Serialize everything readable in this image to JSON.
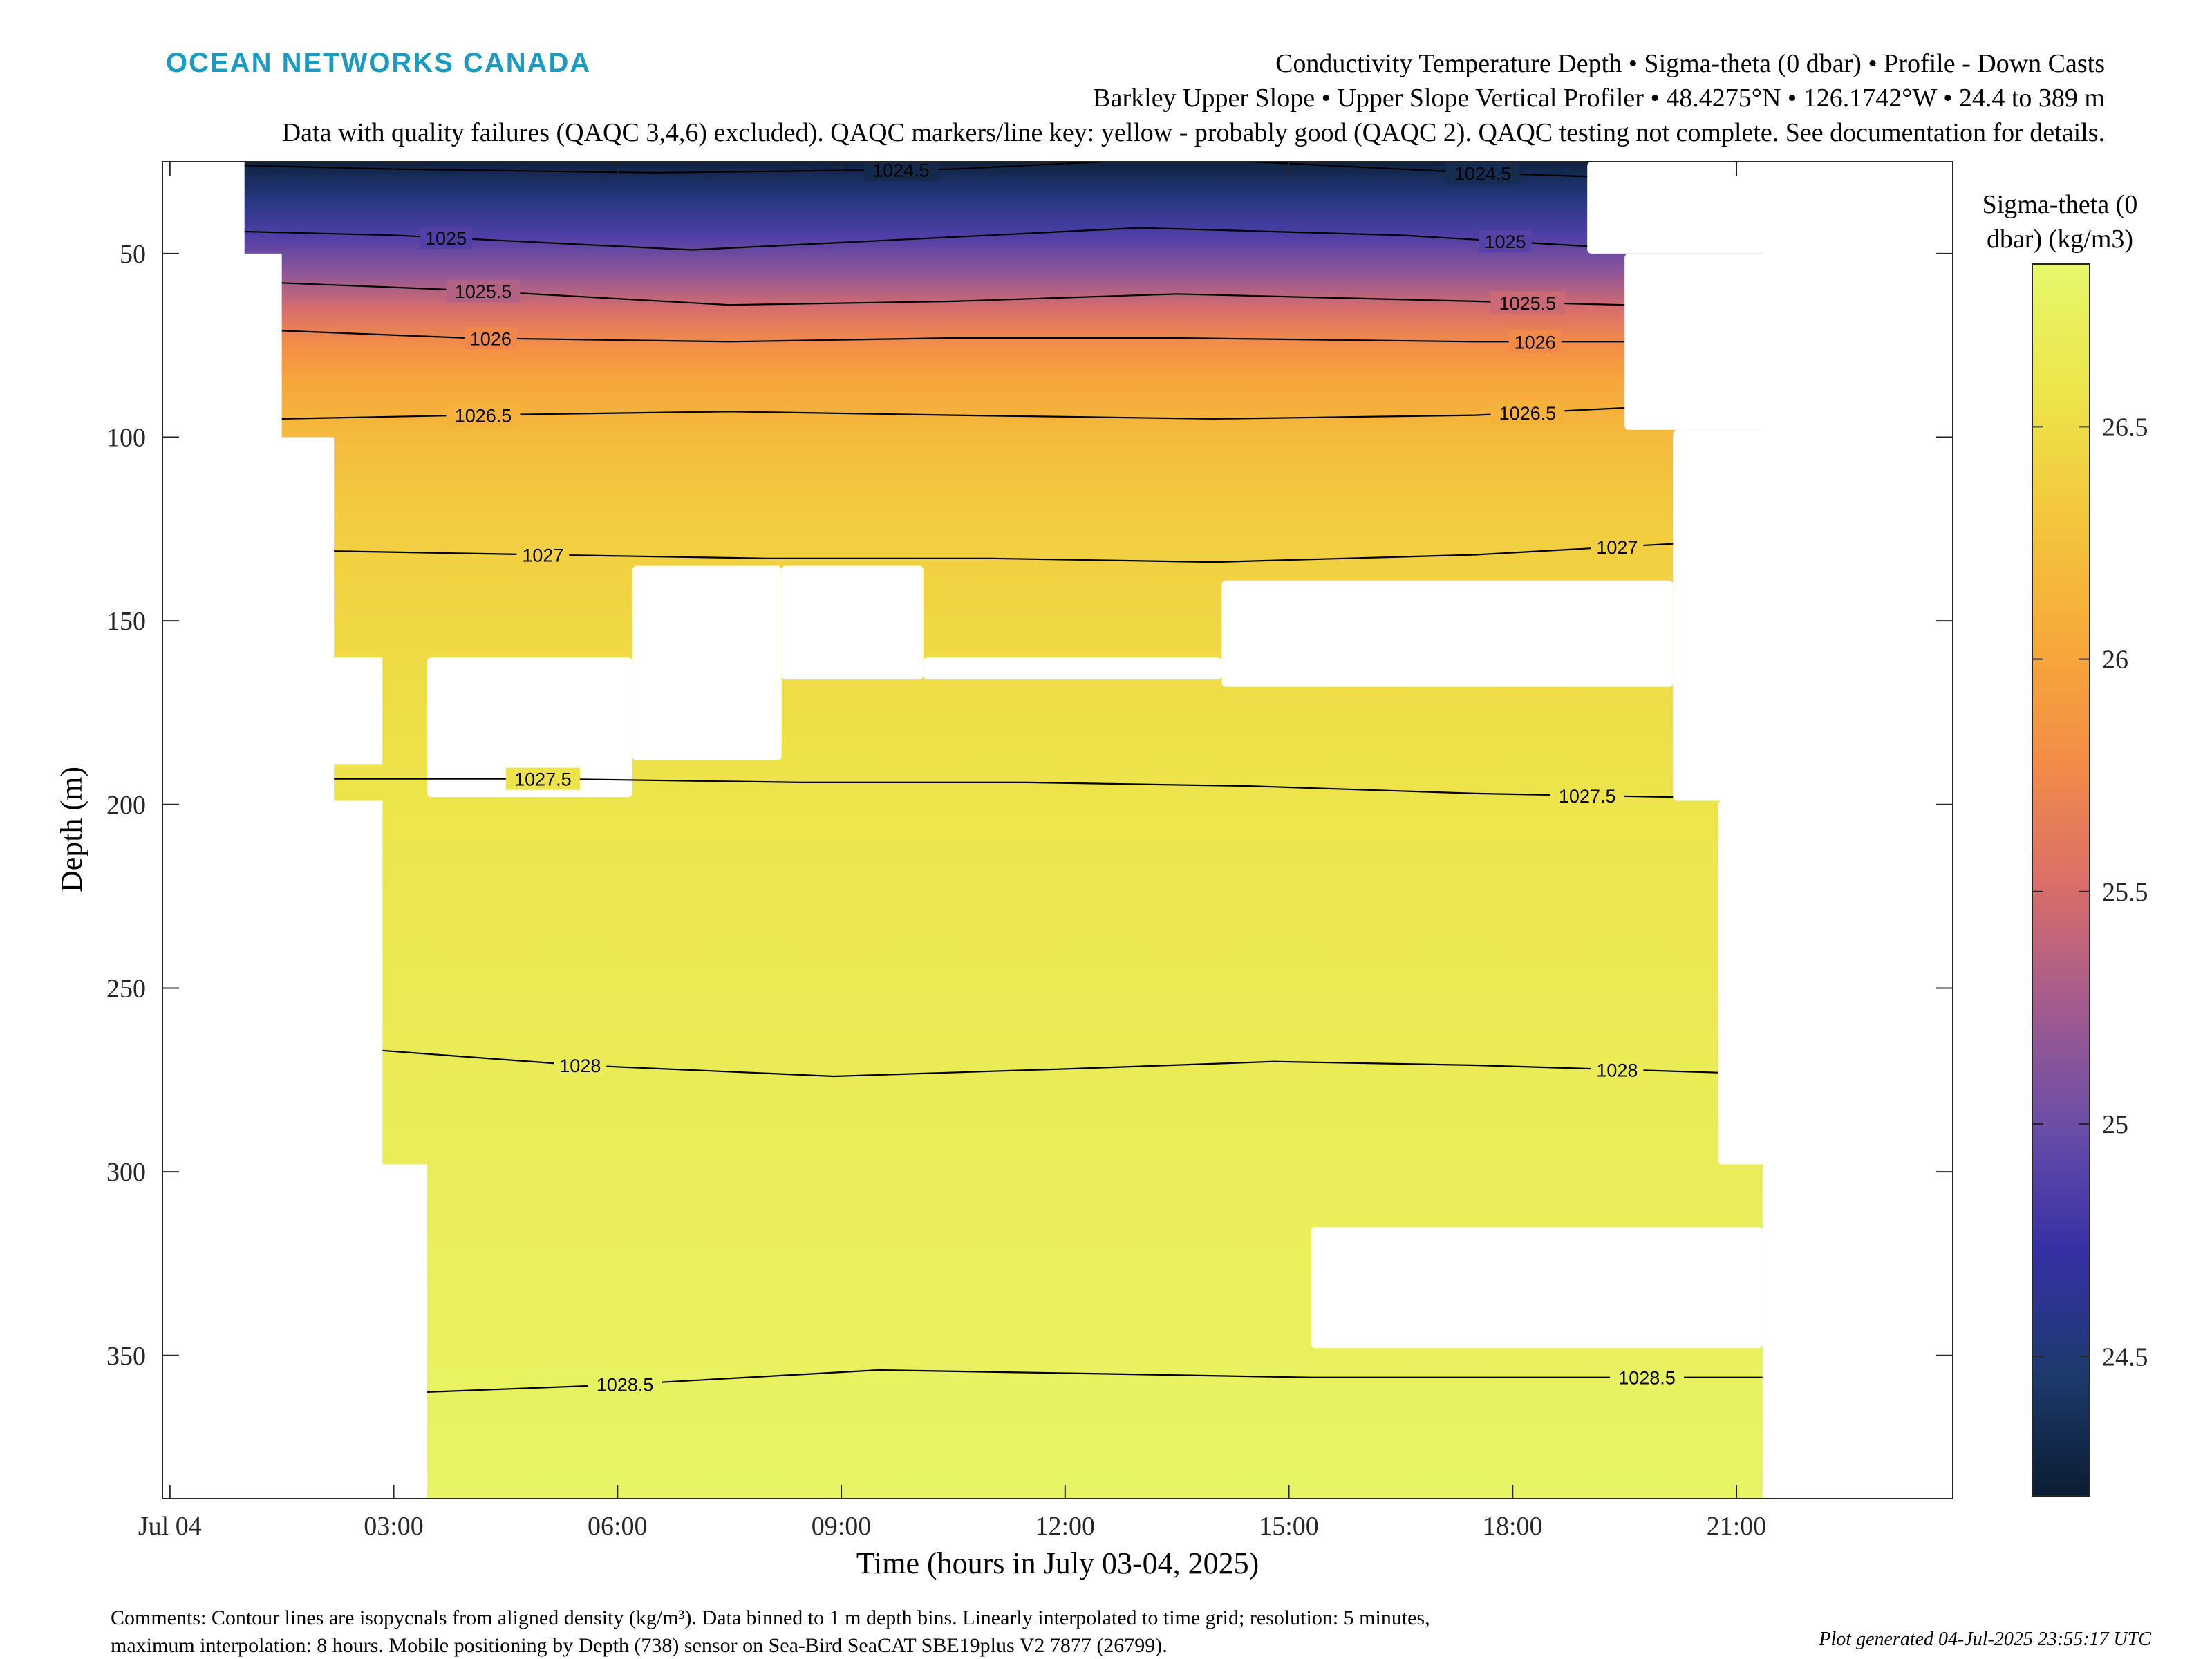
{
  "header": {
    "logo_text": "OCEAN NETWORKS CANADA",
    "title_line1": "Conductivity Temperature Depth • Sigma-theta (0 dbar) • Profile - Down Casts",
    "title_line2": "Barkley Upper Slope • Upper Slope Vertical Profiler • 48.4275°N • 126.1742°W • 24.4 to 389 m",
    "title_line3": "Data with quality failures (QAQC 3,4,6) excluded). QAQC markers/line key: yellow - probably good (QAQC 2). QAQC testing not complete. See documentation for details."
  },
  "footer": {
    "comments_line1": "Comments: Contour lines are isopycnals from aligned density (kg/m³). Data binned to 1 m depth bins. Linearly interpolated to time grid; resolution: 5 minutes,",
    "comments_line2": "maximum interpolation: 8 hours. Mobile positioning by Depth (738) sensor on Sea-Bird SeaCAT SBE19plus V2 7877 (26799).",
    "generated": "Plot generated 04-Jul-2025 23:55:17 UTC"
  },
  "colors": {
    "logo": "#1a9bc4",
    "axis": "#262626",
    "contour": "#000000",
    "colormap": [
      "#0c1d33",
      "#1d3a6e",
      "#3630a6",
      "#6a4ea8",
      "#a45b8e",
      "#dc6f68",
      "#f48d46",
      "#f6ac3a",
      "#f3c83d",
      "#ede64c",
      "#e6f76a"
    ]
  },
  "chart_data": {
    "type": "heatmap",
    "xlabel": "Time (hours in July 03-04, 2025)",
    "ylabel": "Depth (m)",
    "x_ticks": [
      {
        "hour": 0,
        "label": "Jul 04"
      },
      {
        "hour": 3,
        "label": "03:00"
      },
      {
        "hour": 6,
        "label": "06:00"
      },
      {
        "hour": 9,
        "label": "09:00"
      },
      {
        "hour": 12,
        "label": "12:00"
      },
      {
        "hour": 15,
        "label": "15:00"
      },
      {
        "hour": 18,
        "label": "18:00"
      },
      {
        "hour": 21,
        "label": "21:00"
      }
    ],
    "y_ticks": [
      50,
      100,
      150,
      200,
      250,
      300,
      350
    ],
    "xlim": [
      -0.1,
      23.9
    ],
    "ylim": [
      25,
      389
    ],
    "y_reversed": true,
    "colorbar": {
      "title_line1": "Sigma-theta (0",
      "title_line2": "dbar) (kg/m3)",
      "range": [
        24.2,
        26.85
      ],
      "ticks": [
        24.5,
        25,
        25.5,
        26,
        26.5
      ]
    },
    "field_profile": {
      "depth": [
        25,
        35,
        45,
        55,
        65,
        75,
        85,
        100,
        120,
        150,
        200,
        250,
        300,
        350,
        389
      ],
      "sigma": [
        24.25,
        24.55,
        24.85,
        25.15,
        25.5,
        25.8,
        26.0,
        26.2,
        26.35,
        26.45,
        26.58,
        26.65,
        26.7,
        26.75,
        26.8
      ]
    },
    "data_columns": [
      {
        "t0": 1.0,
        "t1": 1.5,
        "dmax": 50
      },
      {
        "t0": 1.5,
        "t1": 2.2,
        "dmax": 100
      },
      {
        "t0": 2.2,
        "t1": 2.85,
        "dmax": 160
      },
      {
        "t0": 2.2,
        "t1": 2.85,
        "dmin": 189,
        "dmax": 199
      },
      {
        "t0": 2.85,
        "t1": 3.45,
        "dmax": 298
      },
      {
        "t0": 3.45,
        "t1": 19.0,
        "dmax": 389
      },
      {
        "t0": 19.0,
        "t1": 19.5,
        "dmax": 389
      },
      {
        "t0": 19.5,
        "t1": 20.15,
        "dmax": 389
      },
      {
        "t0": 20.15,
        "t1": 20.75,
        "dmax": 389
      },
      {
        "t0": 20.75,
        "t1": 21.35,
        "dmax": 389
      }
    ],
    "gaps": [
      {
        "t0": 3.45,
        "t1": 6.2,
        "dmin": 160,
        "dmax": 198
      },
      {
        "t0": 6.2,
        "t1": 8.2,
        "dmin": 135,
        "dmax": 188
      },
      {
        "t0": 8.2,
        "t1": 10.1,
        "dmin": 135,
        "dmax": 166
      },
      {
        "t0": 10.1,
        "t1": 14.1,
        "dmin": 160,
        "dmax": 166
      },
      {
        "t0": 14.1,
        "t1": 20.15,
        "dmin": 139,
        "dmax": 168
      },
      {
        "t0": 19.0,
        "t1": 23.9,
        "dmin": 25,
        "dmax": 50
      },
      {
        "t0": 19.5,
        "t1": 23.9,
        "dmin": 50,
        "dmax": 98
      },
      {
        "t0": 20.15,
        "t1": 23.9,
        "dmin": 98,
        "dmax": 199
      },
      {
        "t0": 20.75,
        "t1": 23.9,
        "dmin": 199,
        "dmax": 298
      },
      {
        "t0": 15.3,
        "t1": 21.35,
        "dmin": 315,
        "dmax": 348
      },
      {
        "t0": 21.35,
        "t1": 23.9,
        "dmin": 298,
        "dmax": 389
      }
    ],
    "contours": [
      {
        "label": "1024.5",
        "points": [
          [
            1.0,
            26
          ],
          [
            3.0,
            27
          ],
          [
            6.5,
            28
          ],
          [
            10.5,
            27
          ],
          [
            13.5,
            24
          ],
          [
            17.5,
            28
          ],
          [
            19.0,
            29
          ]
        ],
        "label_positions": [
          9.8,
          17.6
        ]
      },
      {
        "label": "1025",
        "points": [
          [
            1.0,
            44
          ],
          [
            3.0,
            45
          ],
          [
            7.0,
            49
          ],
          [
            10.0,
            46
          ],
          [
            13.0,
            43
          ],
          [
            16.5,
            45
          ],
          [
            19.0,
            48
          ]
        ],
        "label_positions": [
          3.7,
          17.9
        ]
      },
      {
        "label": "1025.5",
        "points": [
          [
            1.5,
            58
          ],
          [
            4.0,
            60
          ],
          [
            7.5,
            64
          ],
          [
            10.5,
            63
          ],
          [
            13.5,
            61
          ],
          [
            17.5,
            63
          ],
          [
            19.5,
            64
          ]
        ],
        "label_positions": [
          4.2,
          18.2
        ]
      },
      {
        "label": "1026",
        "points": [
          [
            1.5,
            71
          ],
          [
            4.0,
            73
          ],
          [
            7.5,
            74
          ],
          [
            10.5,
            73
          ],
          [
            13.5,
            73
          ],
          [
            17.5,
            74
          ],
          [
            19.5,
            74
          ]
        ],
        "label_positions": [
          4.3,
          18.3
        ]
      },
      {
        "label": "1026.5",
        "points": [
          [
            1.5,
            95
          ],
          [
            4.0,
            94
          ],
          [
            7.5,
            93
          ],
          [
            10.5,
            94
          ],
          [
            14.0,
            95
          ],
          [
            17.5,
            94
          ],
          [
            19.5,
            92
          ]
        ],
        "label_positions": [
          4.2,
          18.2
        ]
      },
      {
        "label": "1027",
        "points": [
          [
            2.2,
            131
          ],
          [
            5.0,
            132
          ],
          [
            8.0,
            133
          ],
          [
            11.0,
            133
          ],
          [
            14.0,
            134
          ],
          [
            17.5,
            132
          ],
          [
            20.15,
            129
          ]
        ],
        "label_positions": [
          5.0,
          19.4
        ]
      },
      {
        "label": "1027.5",
        "points": [
          [
            2.2,
            193
          ],
          [
            5.0,
            193
          ],
          [
            8.5,
            194
          ],
          [
            11.5,
            194
          ],
          [
            14.5,
            195
          ],
          [
            17.5,
            197
          ],
          [
            20.15,
            198
          ]
        ],
        "label_positions": [
          5.0,
          19.0
        ]
      },
      {
        "label": "1028",
        "points": [
          [
            2.85,
            267
          ],
          [
            5.5,
            271
          ],
          [
            8.9,
            274
          ],
          [
            12.0,
            272
          ],
          [
            14.8,
            270
          ],
          [
            17.5,
            271
          ],
          [
            20.75,
            273
          ]
        ],
        "label_positions": [
          5.5,
          19.4
        ]
      },
      {
        "label": "1028.5",
        "points": [
          [
            3.45,
            360
          ],
          [
            6.0,
            358
          ],
          [
            9.5,
            354
          ],
          [
            12.5,
            355
          ],
          [
            15.3,
            356
          ],
          [
            18.0,
            356
          ],
          [
            21.35,
            356
          ]
        ],
        "label_positions": [
          6.1,
          19.8
        ]
      }
    ]
  }
}
